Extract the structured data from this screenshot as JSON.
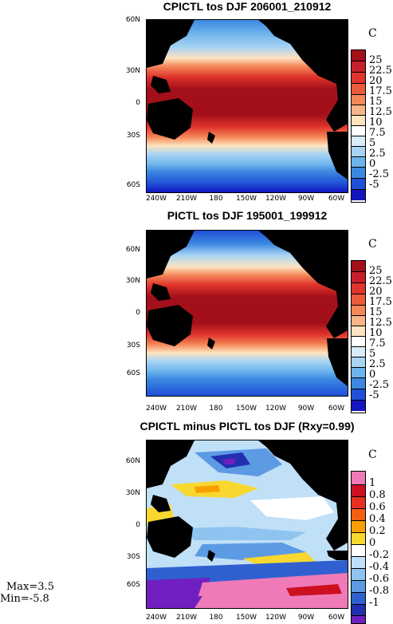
{
  "panels": [
    {
      "title": "CPICTL tos DJF 206001_210912",
      "unit": "C",
      "yticks": [
        "60N",
        "30N",
        "0",
        "30S",
        "60S"
      ],
      "xticks": [
        "240W",
        "210W",
        "180",
        "150W",
        "120W",
        "90W",
        "60W"
      ],
      "colorbar_labels": [
        "25",
        "22.5",
        "20",
        "17.5",
        "15",
        "12.5",
        "10",
        "7.5",
        "5",
        "2.5",
        "0",
        "-2.5",
        "-5"
      ]
    },
    {
      "title": "PICTL tos DJF 195001_199912",
      "unit": "C",
      "yticks": [
        "60N",
        "30N",
        "0",
        "30S",
        "60S"
      ],
      "xticks": [
        "240W",
        "210W",
        "180",
        "150W",
        "120W",
        "90W",
        "60W"
      ],
      "colorbar_labels": [
        "25",
        "22.5",
        "20",
        "17.5",
        "15",
        "12.5",
        "10",
        "7.5",
        "5",
        "2.5",
        "0",
        "-2.5",
        "-5"
      ]
    },
    {
      "title": "CPICTL minus PICTL tos DJF (Rxy=0.99)",
      "unit": "C",
      "yticks": [
        "60N",
        "30N",
        "0",
        "30S",
        "60S"
      ],
      "xticks": [
        "240W",
        "210W",
        "180",
        "150W",
        "120W",
        "90W",
        "60W"
      ],
      "colorbar_labels": [
        "1",
        "0.8",
        "0.6",
        "0.4",
        "0.2",
        "0",
        "-0.2",
        "-0.4",
        "-0.6",
        "-0.8",
        "-1"
      ]
    }
  ],
  "stats": {
    "max": "Max=3.5",
    "min": "Min=-5.8"
  },
  "colors": {
    "abs_scale": [
      "#a3101a",
      "#c8202a",
      "#e0342c",
      "#ec5a3c",
      "#f48858",
      "#f8b488",
      "#fde3c0",
      "#ffffff",
      "#d8ecfa",
      "#a8d4f4",
      "#6eb4ec",
      "#3c88e0",
      "#2050d8",
      "#1414c0"
    ],
    "diff_scale": [
      "#f07ab8",
      "#cc1020",
      "#e83020",
      "#f46010",
      "#f8a000",
      "#f8d830",
      "#ffffff",
      "#c0e0f8",
      "#90c4f0",
      "#5c9ae4",
      "#3060d0",
      "#2030b0",
      "#7020c0"
    ],
    "land": "#000000"
  }
}
